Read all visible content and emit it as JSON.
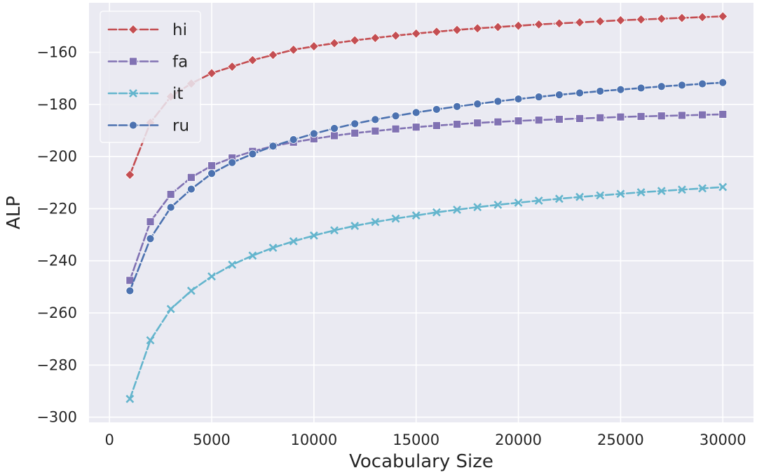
{
  "chart_data": {
    "type": "line",
    "title": "",
    "xlabel": "Vocabulary Size",
    "ylabel": "ALP",
    "xlim": [
      -1000,
      31500
    ],
    "ylim": [
      -302,
      -141
    ],
    "xticks": [
      0,
      5000,
      10000,
      15000,
      20000,
      25000,
      30000
    ],
    "yticks": [
      -300,
      -280,
      -260,
      -240,
      -220,
      -200,
      -180,
      -160
    ],
    "grid": true,
    "background": "#eaeaf2",
    "legend_position": "top-left",
    "x": [
      1000,
      2000,
      3000,
      4000,
      5000,
      6000,
      7000,
      8000,
      9000,
      10000,
      11000,
      12000,
      13000,
      14000,
      15000,
      16000,
      17000,
      18000,
      19000,
      20000,
      21000,
      22000,
      23000,
      24000,
      25000,
      26000,
      27000,
      28000,
      29000,
      30000
    ],
    "series": [
      {
        "name": "hi",
        "color": "#c44e52",
        "marker": "diamond",
        "values": [
          -207,
          -187,
          -177,
          -172,
          -168,
          -165.5,
          -163,
          -161,
          -159,
          -157.7,
          -156.5,
          -155.4,
          -154.5,
          -153.6,
          -152.8,
          -152.1,
          -151.4,
          -150.8,
          -150.3,
          -149.8,
          -149.3,
          -148.9,
          -148.5,
          -148.1,
          -147.7,
          -147.4,
          -147.1,
          -146.8,
          -146.5,
          -146.2
        ]
      },
      {
        "name": "fa",
        "color": "#8172b3",
        "marker": "square",
        "values": [
          -247.5,
          -225,
          -214.5,
          -208,
          -203.5,
          -200.5,
          -198,
          -196,
          -194.5,
          -193.2,
          -192,
          -191,
          -190.2,
          -189.4,
          -188.7,
          -188.1,
          -187.6,
          -187.1,
          -186.7,
          -186.3,
          -186,
          -185.7,
          -185.4,
          -185.1,
          -184.8,
          -184.6,
          -184.4,
          -184.2,
          -184,
          -183.8
        ]
      },
      {
        "name": "it",
        "color": "#64b5cd",
        "marker": "x",
        "values": [
          -293,
          -270.5,
          -258.5,
          -251.5,
          -246,
          -241.5,
          -238,
          -235,
          -232.5,
          -230.3,
          -228.3,
          -226.6,
          -225.1,
          -223.8,
          -222.6,
          -221.4,
          -220.4,
          -219.4,
          -218.5,
          -217.7,
          -216.9,
          -216.2,
          -215.5,
          -214.9,
          -214.3,
          -213.7,
          -213.2,
          -212.7,
          -212.2,
          -211.7
        ]
      },
      {
        "name": "ru",
        "color": "#4c72b0",
        "marker": "circle",
        "values": [
          -251.5,
          -231.5,
          -219.5,
          -212.5,
          -206.5,
          -202.3,
          -199,
          -196,
          -193.5,
          -191.2,
          -189.2,
          -187.4,
          -185.8,
          -184.4,
          -183.1,
          -181.9,
          -180.8,
          -179.8,
          -178.8,
          -177.9,
          -177.1,
          -176.3,
          -175.6,
          -174.9,
          -174.3,
          -173.7,
          -173.1,
          -172.6,
          -172.1,
          -171.6
        ]
      }
    ]
  }
}
